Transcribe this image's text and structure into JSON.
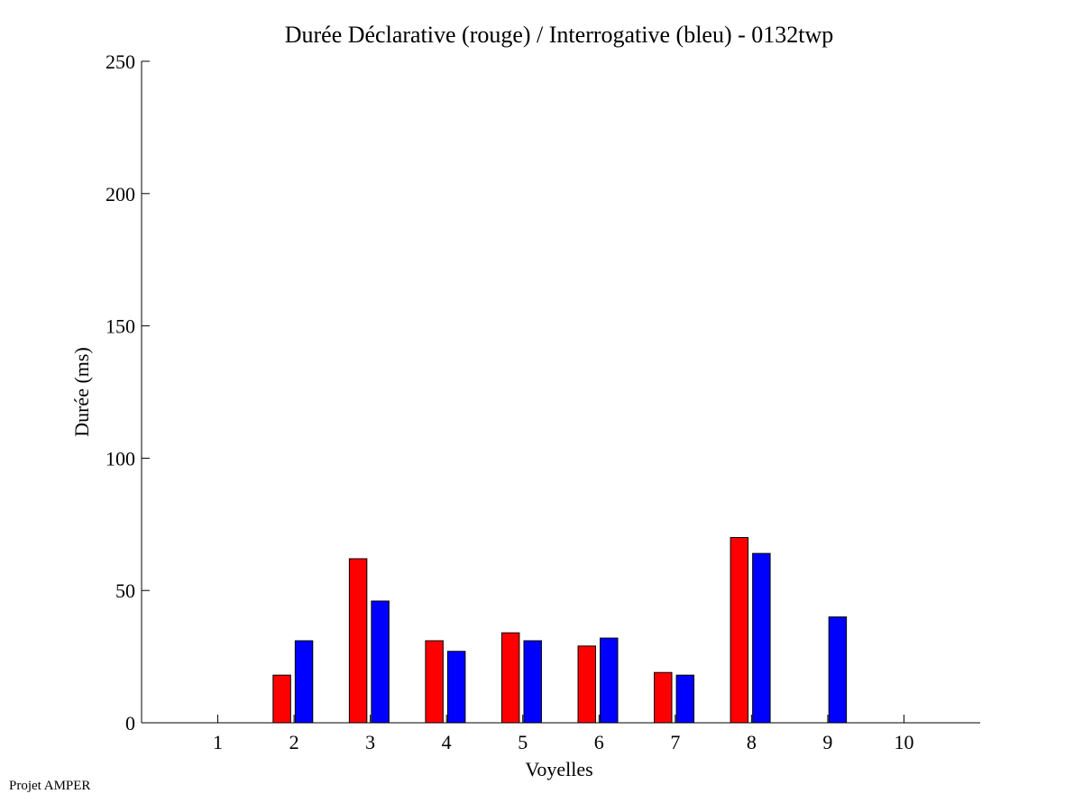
{
  "footer_text": "Projet AMPER",
  "chart_data": {
    "type": "bar",
    "title": "Durée Déclarative (rouge) / Interrogative (bleu) - 0132twp",
    "xlabel": "Voyelles",
    "ylabel": "Durée (ms)",
    "ylim": [
      0,
      250
    ],
    "yticks": [
      0,
      50,
      100,
      150,
      200,
      250
    ],
    "xlim": [
      0,
      11
    ],
    "categories": [
      "1",
      "2",
      "3",
      "4",
      "5",
      "6",
      "7",
      "8",
      "9",
      "10"
    ],
    "grid": false,
    "legend": "none",
    "series": [
      {
        "color": "#ff0000",
        "values": [
          null,
          18,
          62,
          31,
          34,
          29,
          19,
          70,
          null,
          null
        ]
      },
      {
        "color": "#0000ff",
        "values": [
          null,
          31,
          46,
          27,
          31,
          32,
          18,
          64,
          40,
          null
        ]
      }
    ]
  }
}
